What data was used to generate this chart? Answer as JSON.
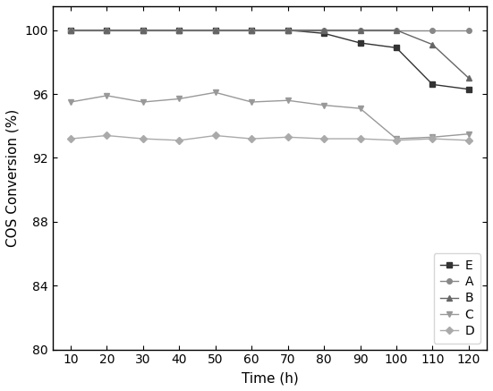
{
  "time": [
    10,
    20,
    30,
    40,
    50,
    60,
    70,
    80,
    90,
    100,
    110,
    120
  ],
  "series": {
    "E": [
      100,
      100,
      100,
      100,
      100,
      100,
      100,
      99.8,
      99.2,
      98.9,
      96.6,
      96.3
    ],
    "A": [
      100,
      100,
      100,
      100,
      100,
      100,
      100,
      100,
      100,
      100,
      100,
      100
    ],
    "B": [
      100,
      100,
      100,
      100,
      100,
      100,
      100,
      100,
      100,
      100,
      99.1,
      97.0
    ],
    "C": [
      95.5,
      95.9,
      95.5,
      95.7,
      96.1,
      95.5,
      95.6,
      95.3,
      95.1,
      93.2,
      93.3,
      93.5
    ],
    "D": [
      93.2,
      93.4,
      93.2,
      93.1,
      93.4,
      93.2,
      93.3,
      93.2,
      93.2,
      93.1,
      93.2,
      93.1
    ]
  },
  "colors": {
    "E": "#333333",
    "A": "#888888",
    "B": "#666666",
    "C": "#999999",
    "D": "#aaaaaa"
  },
  "markers": {
    "E": "s",
    "A": "o",
    "B": "^",
    "C": "v",
    "D": "D"
  },
  "xlabel": "Time (h)",
  "ylabel": "COS Conversion (%)",
  "xlim": [
    5,
    125
  ],
  "ylim": [
    80,
    101.5
  ],
  "ytick_locs": [
    80,
    84,
    88,
    92,
    96,
    100
  ],
  "xticks": [
    10,
    20,
    30,
    40,
    50,
    60,
    70,
    80,
    90,
    100,
    110,
    120
  ],
  "legend_order": [
    "E",
    "A",
    "B",
    "C",
    "D"
  ],
  "legend_loc": "lower right",
  "markersize": 4,
  "linewidth": 1.0,
  "figwidth": 5.51,
  "figheight": 4.37,
  "dpi": 100
}
